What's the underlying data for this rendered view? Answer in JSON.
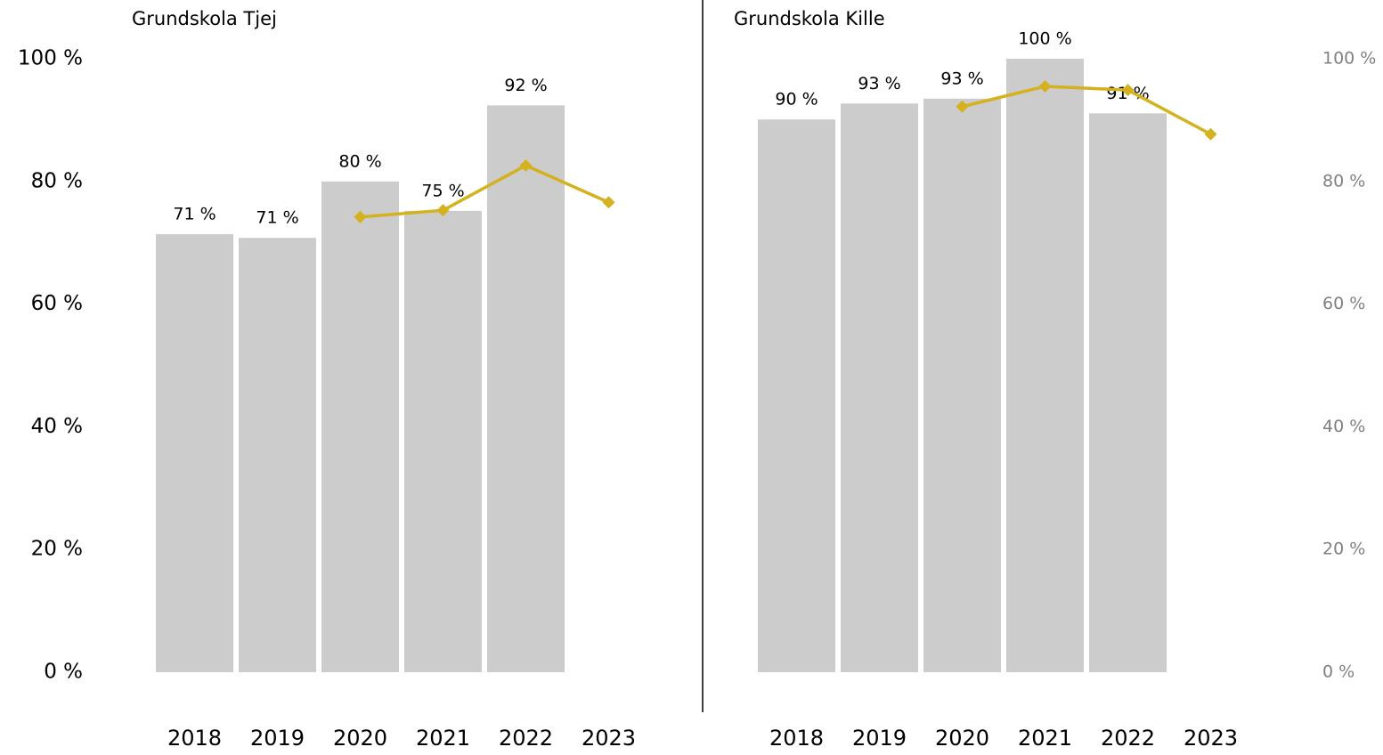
{
  "chart_data": [
    {
      "type": "bar",
      "title": "Grundskola Tjej",
      "categories": [
        "2018",
        "2019",
        "2020",
        "2021",
        "2022",
        "2023"
      ],
      "series": [
        {
          "type": "bar",
          "color": "#cccccc",
          "values": [
            71.4,
            70.8,
            80,
            75.2,
            92.4,
            null
          ],
          "value_labels": [
            "71 %",
            "71 %",
            "80 %",
            "75 %",
            "92 %",
            null
          ]
        },
        {
          "type": "line",
          "color": "#d4b11e",
          "values": [
            null,
            null,
            74.2,
            75.3,
            82.6,
            76.6
          ]
        }
      ],
      "ylim": [
        0,
        100
      ],
      "yticks": [
        {
          "value": 0,
          "label": "0 %"
        },
        {
          "value": 20,
          "label": "20 %"
        },
        {
          "value": 40,
          "label": "40 %"
        },
        {
          "value": 60,
          "label": "60 %"
        },
        {
          "value": 80,
          "label": "80 %"
        },
        {
          "value": 100,
          "label": "100 %"
        }
      ],
      "yaxis_side": "left",
      "axis_label_color": "#000000"
    },
    {
      "type": "bar",
      "title": "Grundskola Kille",
      "categories": [
        "2018",
        "2019",
        "2020",
        "2021",
        "2022",
        "2023"
      ],
      "series": [
        {
          "type": "bar",
          "color": "#cccccc",
          "values": [
            90.1,
            92.7,
            93.5,
            100,
            91.1,
            null
          ],
          "value_labels": [
            "90 %",
            "93 %",
            "93 %",
            "100 %",
            "91 %",
            null
          ]
        },
        {
          "type": "line",
          "color": "#d4b11e",
          "values": [
            null,
            null,
            92.2,
            95.5,
            94.9,
            87.7
          ]
        }
      ],
      "ylim": [
        0,
        100
      ],
      "yticks": [
        {
          "value": 0,
          "label": "0 %"
        },
        {
          "value": 20,
          "label": "20 %"
        },
        {
          "value": 40,
          "label": "40 %"
        },
        {
          "value": 60,
          "label": "60 %"
        },
        {
          "value": 80,
          "label": "80 %"
        },
        {
          "value": 100,
          "label": "100 %"
        }
      ],
      "yaxis_side": "right",
      "axis_label_color": "#808080"
    }
  ]
}
